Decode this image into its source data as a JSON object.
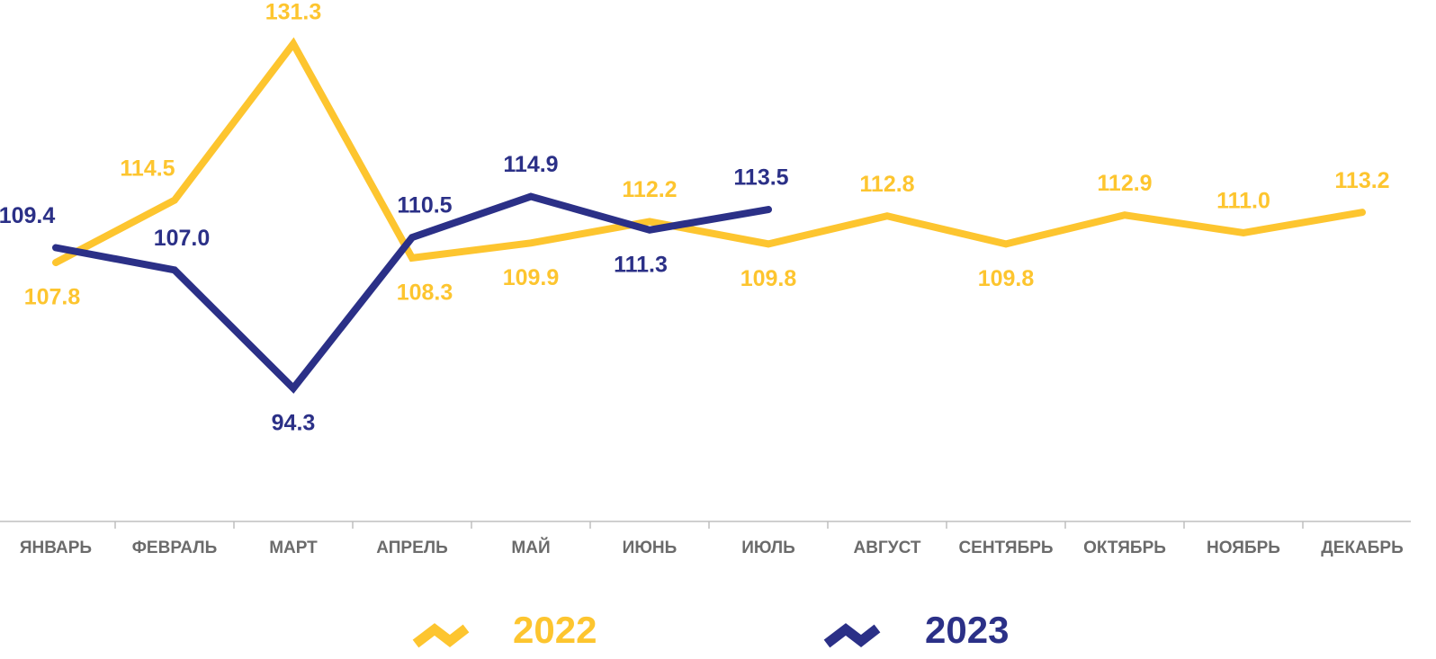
{
  "chart_data": {
    "type": "line",
    "categories": [
      "ЯНВАРЬ",
      "ФЕВРАЛЬ",
      "МАРТ",
      "АПРЕЛЬ",
      "МАЙ",
      "ИЮНЬ",
      "ИЮЛЬ",
      "АВГУСТ",
      "СЕНТЯБРЬ",
      "ОКТЯБРЬ",
      "НОЯБРЬ",
      "ДЕКАБРЬ"
    ],
    "series": [
      {
        "name": "2022",
        "color": "#fdc52f",
        "values": [
          107.8,
          114.5,
          131.3,
          108.3,
          109.9,
          112.2,
          109.8,
          112.8,
          109.8,
          112.9,
          111.0,
          113.2
        ],
        "value_labels": [
          "107.8",
          "114.5",
          "131.3",
          "108.3",
          "109.9",
          "112.2",
          "109.8",
          "112.8",
          "109.8",
          "112.9",
          "111.0",
          "113.2"
        ]
      },
      {
        "name": "2023",
        "color": "#2b3087",
        "values": [
          109.4,
          107.0,
          94.3,
          110.5,
          114.9,
          111.3,
          113.5,
          null,
          null,
          null,
          null,
          null
        ],
        "value_labels": [
          "109.4",
          "107.0",
          "94.3",
          "110.5",
          "114.9",
          "111.3",
          "113.5",
          null,
          null,
          null,
          null,
          null
        ]
      }
    ],
    "ylim": [
      80,
      136
    ]
  }
}
